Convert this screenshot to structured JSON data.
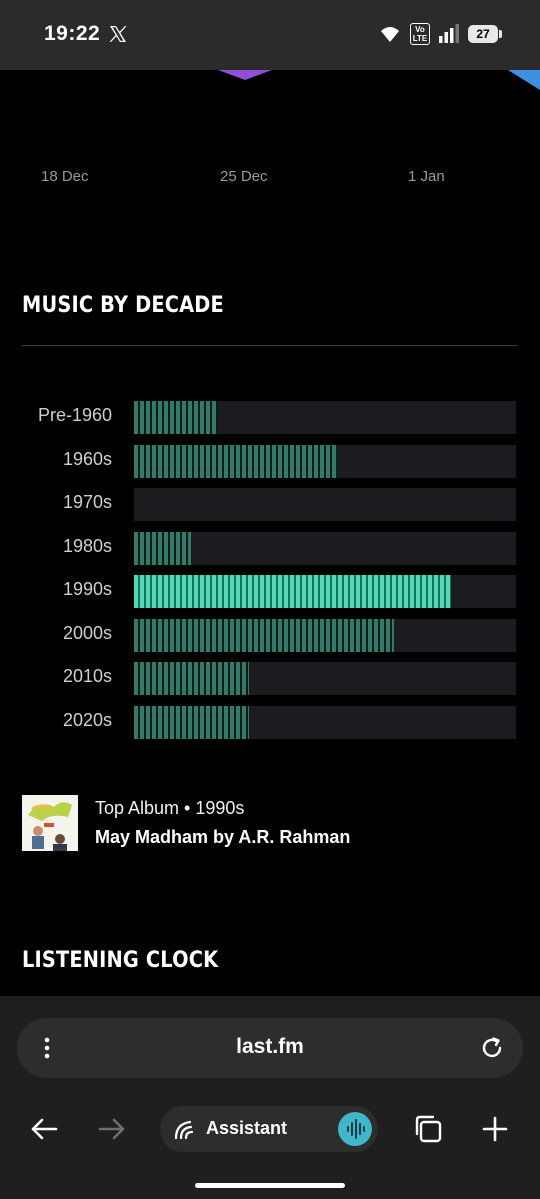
{
  "status_bar": {
    "time": "19:22",
    "network_badge_top": "Vo",
    "network_badge_bottom": "LTE",
    "battery": "27",
    "icons": [
      "x-logo-icon",
      "wifi-icon",
      "signal-icon",
      "battery-icon"
    ]
  },
  "top_chart": {
    "date_labels": [
      "18 Dec",
      "25 Dec",
      "1 Jan"
    ]
  },
  "music_by_decade": {
    "title": "MUSIC BY DECADE",
    "chart_data": {
      "type": "bar",
      "orientation": "horizontal",
      "categories": [
        "Pre-1960",
        "1960s",
        "1970s",
        "1980s",
        "1990s",
        "2000s",
        "2010s",
        "2020s"
      ],
      "values": [
        0.22,
        0.53,
        0.0,
        0.15,
        0.83,
        0.68,
        0.3,
        0.3
      ],
      "highlight": "1990s",
      "colors": {
        "bar": "#2f7c69",
        "highlight": "#4fdcb4",
        "track": "#1c1c20"
      }
    },
    "top_album": {
      "line1": "Top Album • 1990s",
      "line2": "May Madham by A.R. Rahman"
    }
  },
  "listening_clock": {
    "title": "LISTENING CLOCK"
  },
  "browser": {
    "url": "last.fm",
    "assistant_label": "Assistant",
    "icons": [
      "menu-dots-icon",
      "reload-icon",
      "back-arrow-icon",
      "forward-arrow-icon",
      "assistant-icon",
      "voice-icon",
      "tabs-icon",
      "plus-icon"
    ]
  }
}
